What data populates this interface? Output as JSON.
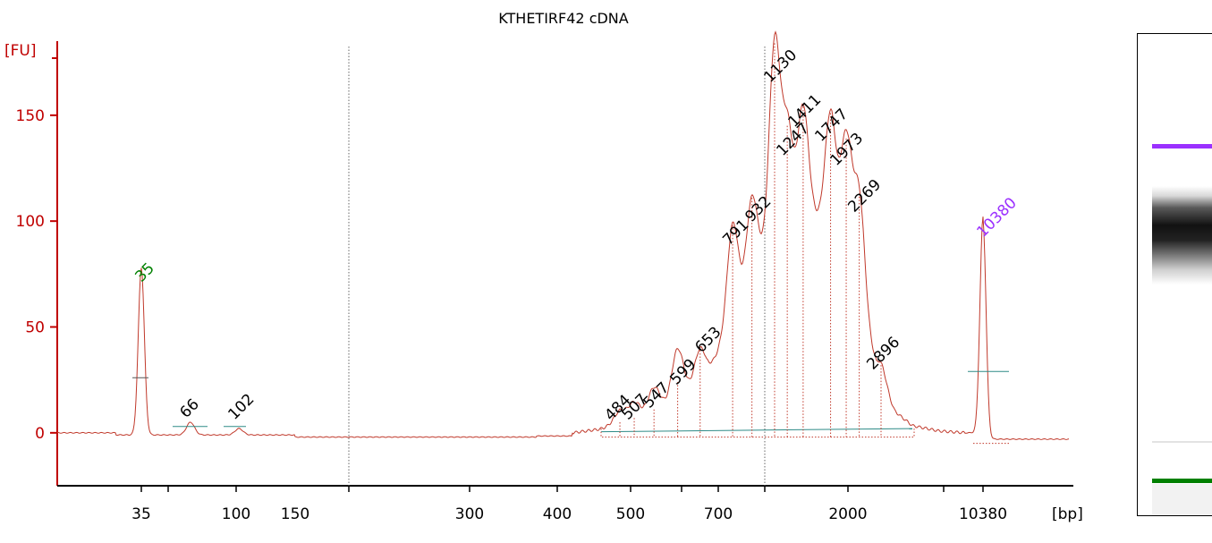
{
  "chart_data": {
    "type": "line",
    "title": "KTHETIRF42 cDNA",
    "ylabel": "[FU]",
    "xlabel": "[bp]",
    "ylim": [
      -25,
      185
    ],
    "y_ticks": [
      0,
      50,
      100,
      150
    ],
    "x_ticks": [
      "35",
      "100",
      "150",
      "300",
      "400",
      "500",
      "700",
      "2000",
      "10380"
    ],
    "grid": false,
    "colors": {
      "trace": "#c0392b",
      "axis": "#c00000",
      "lower_marker": "#008000",
      "upper_marker": "#9b30ff",
      "baseline": "#2e8b87"
    },
    "peaks": [
      {
        "label": "35",
        "size_bp": 35,
        "fu": 79,
        "color": "#008000"
      },
      {
        "label": "66",
        "size_bp": 66,
        "fu": 6,
        "color": "#000000"
      },
      {
        "label": "102",
        "size_bp": 102,
        "fu": 3,
        "color": "#000000"
      },
      {
        "label": "484",
        "size_bp": 484,
        "fu": 6,
        "color": "#000000"
      },
      {
        "label": "507",
        "size_bp": 507,
        "fu": 8,
        "color": "#000000"
      },
      {
        "label": "547",
        "size_bp": 547,
        "fu": 12,
        "color": "#000000"
      },
      {
        "label": "599",
        "size_bp": 599,
        "fu": 25,
        "color": "#000000"
      },
      {
        "label": "653",
        "size_bp": 653,
        "fu": 40,
        "color": "#000000"
      },
      {
        "label": "791",
        "size_bp": 791,
        "fu": 99,
        "color": "#000000"
      },
      {
        "label": "932",
        "size_bp": 932,
        "fu": 112,
        "color": "#000000"
      },
      {
        "label": "1130",
        "size_bp": 1130,
        "fu": 185,
        "color": "#000000"
      },
      {
        "label": "1247",
        "size_bp": 1247,
        "fu": 146,
        "color": "#000000"
      },
      {
        "label": "1411",
        "size_bp": 1411,
        "fu": 155,
        "color": "#000000"
      },
      {
        "label": "1747",
        "size_bp": 1747,
        "fu": 152,
        "color": "#000000"
      },
      {
        "label": "1973",
        "size_bp": 1973,
        "fu": 140,
        "color": "#000000"
      },
      {
        "label": "2269",
        "size_bp": 2269,
        "fu": 114,
        "color": "#000000"
      },
      {
        "label": "2896",
        "size_bp": 2896,
        "fu": 33,
        "color": "#000000"
      },
      {
        "label": "10380",
        "size_bp": 10380,
        "fu": 102,
        "color": "#9b30ff"
      }
    ]
  }
}
